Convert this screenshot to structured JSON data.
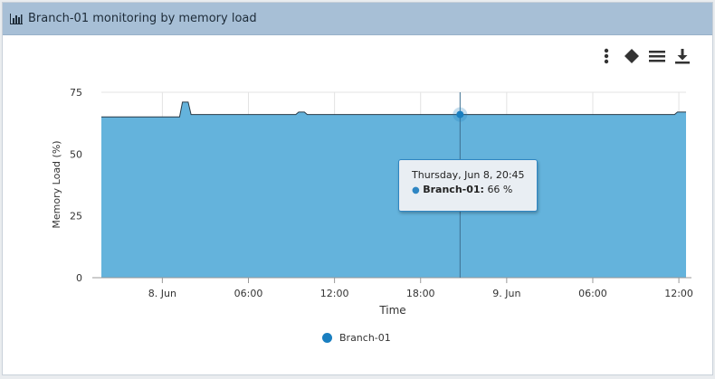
{
  "panel": {
    "title": "Branch-01 monitoring by memory load",
    "header_icon": "bar-chart-icon"
  },
  "toolbar": {
    "icons": [
      "more-vertical-icon",
      "diamond-icon",
      "menu-icon",
      "download-icon"
    ]
  },
  "tooltip": {
    "date": "Thursday, Jun 8, 20:45",
    "series": "Branch-01",
    "value": "66 %"
  },
  "legend": {
    "label": "Branch-01"
  },
  "chart_data": {
    "type": "area",
    "title": "",
    "xlabel": "Time",
    "ylabel": "Memory Load (%)",
    "ylim": [
      0,
      75
    ],
    "y_ticks": [
      0,
      25,
      50,
      75
    ],
    "x_ticks": [
      "8. Jun",
      "06:00",
      "12:00",
      "18:00",
      "9. Jun",
      "06:00",
      "12:00"
    ],
    "x_tick_hours": [
      24,
      30,
      36,
      42,
      48,
      54,
      60
    ],
    "xlim_hours": [
      19.75,
      60.5
    ],
    "grid": true,
    "legend_position": "bottom",
    "colors": {
      "fill": "#64b3dc",
      "line": "#2a3b48",
      "marker": "#1a7fc0"
    },
    "series": [
      {
        "name": "Branch-01",
        "x_hours": [
          19.75,
          25.2,
          25.4,
          25.8,
          26.0,
          33.3,
          33.5,
          33.9,
          34.1,
          39.0,
          44.75,
          50.0,
          55.0,
          59.7,
          59.9,
          60.5
        ],
        "values": [
          65,
          65,
          71,
          71,
          66,
          66,
          67,
          67,
          66,
          66,
          66,
          66,
          66,
          66,
          67,
          67
        ]
      }
    ],
    "highlight": {
      "x_hour": 44.75,
      "value": 66
    }
  }
}
